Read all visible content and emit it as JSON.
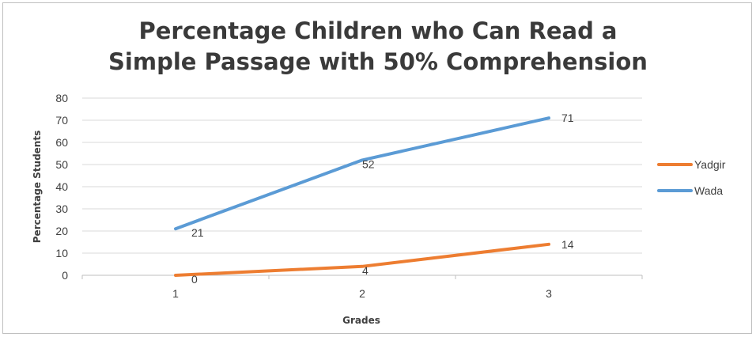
{
  "chart_data": {
    "type": "line",
    "title_line1": "Percentage Children who Can Read a",
    "title_line2": "Simple Passage with 50% Comprehension",
    "xlabel": "Grades",
    "ylabel": "Percentage Students",
    "categories": [
      "1",
      "2",
      "3"
    ],
    "ylim": [
      0,
      80
    ],
    "yticks": [
      0,
      10,
      20,
      30,
      40,
      50,
      60,
      70,
      80
    ],
    "grid": true,
    "legend_position": "right",
    "series": [
      {
        "name": "Yadgir",
        "values": [
          0,
          4,
          14
        ],
        "color": "#ed7d31"
      },
      {
        "name": "Wada",
        "values": [
          21,
          52,
          71
        ],
        "color": "#5b9bd5"
      }
    ]
  }
}
